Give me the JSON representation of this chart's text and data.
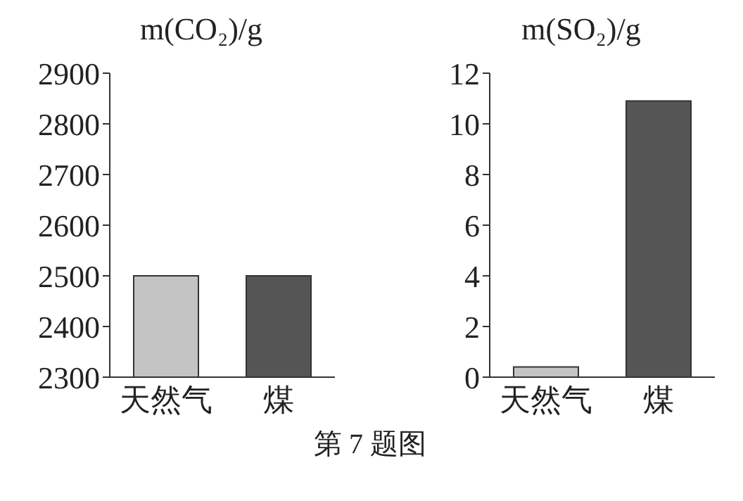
{
  "chart_data": [
    {
      "type": "bar",
      "ylabel": "m(CO₂)/g",
      "categories": [
        "天然气",
        "煤"
      ],
      "values": [
        2500,
        2500
      ],
      "colors": [
        "#c4c4c4",
        "#555555"
      ],
      "ylim": [
        2300,
        2900
      ],
      "yticks": [
        2300,
        2400,
        2500,
        2600,
        2700,
        2800,
        2900
      ],
      "grid": false,
      "legend": false
    },
    {
      "type": "bar",
      "ylabel": "m(SO₂)/g",
      "categories": [
        "天然气",
        "煤"
      ],
      "values": [
        0.4,
        10.9
      ],
      "colors": [
        "#c4c4c4",
        "#555555"
      ],
      "ylim": [
        0,
        12
      ],
      "yticks": [
        0,
        2,
        4,
        6,
        8,
        10,
        12
      ],
      "grid": false,
      "legend": false,
      "annotations": [
        "第 7 题图"
      ]
    }
  ]
}
